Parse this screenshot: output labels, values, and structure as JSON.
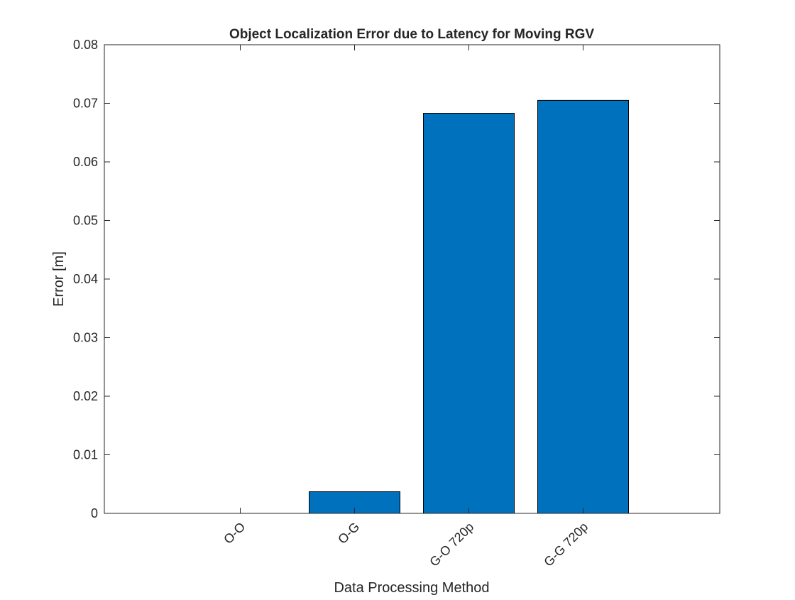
{
  "chart_data": {
    "type": "bar",
    "title": "Object Localization Error due to Latency for Moving RGV",
    "xlabel": "Data Processing Method",
    "ylabel": "Error [m]",
    "categories": [
      "O-O",
      "O-G",
      "G-O 720p",
      "G-G 720p"
    ],
    "values": [
      0,
      0.0037,
      0.0683,
      0.0705
    ],
    "ylim": [
      0,
      0.08
    ],
    "yticks": [
      "0",
      "0.01",
      "0.02",
      "0.03",
      "0.04",
      "0.05",
      "0.06",
      "0.07",
      "0.08"
    ],
    "grid": false,
    "legend": "none",
    "bar_color": "#0072BD"
  }
}
